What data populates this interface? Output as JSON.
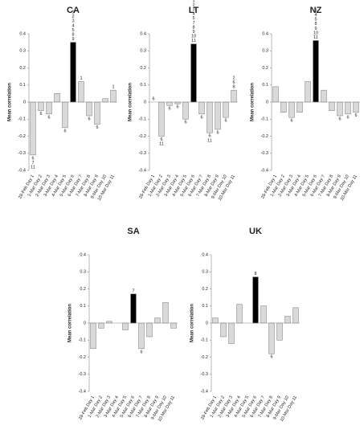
{
  "chart_data": [
    {
      "type": "bar",
      "title": "CA",
      "y_label": "Mean correlation",
      "categories": [
        "28-Feb Day 1",
        "1-Mar Day 2",
        "2-Mar Day 3",
        "3-Mar Day 4",
        "4-Mar Day 5",
        "5-Mar Day 6",
        "6-Mar Day 7",
        "7-Mar Day 8",
        "8-Mar Day 9",
        "9-Mar Day 10",
        "10-Mar Day 11"
      ],
      "values": [
        -0.31,
        -0.05,
        -0.07,
        0.05,
        -0.15,
        0.35,
        0.12,
        -0.08,
        -0.13,
        0.02,
        0.07
      ],
      "colors": [
        "#d9d9d9",
        "#d9d9d9",
        "#d9d9d9",
        "#d9d9d9",
        "#d9d9d9",
        "#000000",
        "#d9d9d9",
        "#d9d9d9",
        "#d9d9d9",
        "#d9d9d9",
        "#d9d9d9"
      ],
      "annotations": [
        [
          "6",
          "7",
          "11"
        ],
        [
          "6"
        ],
        [
          "6"
        ],
        null,
        [
          "6"
        ],
        [
          "1",
          "2",
          "3",
          "4",
          "5",
          "8",
          "9"
        ],
        [
          "1"
        ],
        [
          "6"
        ],
        [
          "6"
        ],
        null,
        [
          "1"
        ]
      ],
      "ylim": [
        -0.4,
        0.4
      ],
      "yticks": [
        -0.4,
        -0.3,
        -0.2,
        -0.1,
        0,
        0.1,
        0.2,
        0.3,
        0.4
      ]
    },
    {
      "type": "bar",
      "title": "LT",
      "y_label": "Mean correlation",
      "categories": [
        "28-Feb Day 1",
        "1-Mar Day 2",
        "2-Mar Day 3",
        "3-Mar Day 4",
        "4-Mar Day 5",
        "5-Mar Day 6",
        "6-Mar Day 7",
        "7-Mar Day 8",
        "8-Mar Day 9",
        "9-Mar Day 10",
        "10-Mar Day 11"
      ],
      "values": [
        0.0,
        -0.2,
        -0.02,
        -0.01,
        -0.1,
        0.34,
        -0.07,
        -0.18,
        -0.16,
        -0.09,
        0.07
      ],
      "colors": [
        "#d9d9d9",
        "#d9d9d9",
        "#d9d9d9",
        "#d9d9d9",
        "#d9d9d9",
        "#000000",
        "#d9d9d9",
        "#d9d9d9",
        "#d9d9d9",
        "#d9d9d9",
        "#d9d9d9"
      ],
      "annotations": [
        [
          "6"
        ],
        [
          "6",
          "11"
        ],
        [
          "6"
        ],
        [
          "6"
        ],
        [
          "6"
        ],
        [
          "1",
          "2",
          "3",
          "4",
          "5",
          "7",
          "8",
          "9",
          "10",
          "11"
        ],
        [
          "6"
        ],
        [
          "6",
          "11"
        ],
        [
          "6"
        ],
        [
          "6"
        ],
        [
          "2",
          "6",
          "8"
        ]
      ],
      "ylim": [
        -0.4,
        0.4
      ],
      "yticks": [
        -0.4,
        -0.3,
        -0.2,
        -0.1,
        0,
        0.1,
        0.2,
        0.3,
        0.4
      ]
    },
    {
      "type": "bar",
      "title": "NZ",
      "y_label": "Mean correlation",
      "categories": [
        "28-Feb Day 1",
        "1-Mar Day 2",
        "2-Mar Day 3",
        "3-Mar Day 4",
        "4-Mar Day 5",
        "5-Mar Day 6",
        "6-Mar Day 7",
        "7-Mar Day 8",
        "8-Mar Day 9",
        "9-Mar Day 10",
        "10-Mar Day 11"
      ],
      "values": [
        0.09,
        -0.06,
        -0.09,
        -0.06,
        0.12,
        0.36,
        0.07,
        -0.05,
        -0.08,
        -0.07,
        -0.06
      ],
      "colors": [
        "#d9d9d9",
        "#d9d9d9",
        "#d9d9d9",
        "#d9d9d9",
        "#d9d9d9",
        "#000000",
        "#d9d9d9",
        "#d9d9d9",
        "#d9d9d9",
        "#d9d9d9",
        "#d9d9d9"
      ],
      "annotations": [
        null,
        null,
        [
          "6"
        ],
        null,
        null,
        [
          "3",
          "4",
          "5",
          "8",
          "9",
          "10",
          "11"
        ],
        null,
        null,
        [
          "6"
        ],
        [
          "6"
        ],
        [
          "6"
        ]
      ],
      "ylim": [
        -0.4,
        0.4
      ],
      "yticks": [
        -0.4,
        -0.3,
        -0.2,
        -0.1,
        0,
        0.1,
        0.2,
        0.3,
        0.4
      ]
    },
    {
      "type": "bar",
      "title": "SA",
      "y_label": "Mean correlation",
      "categories": [
        "28-Feb Day 1",
        "1-Mar Day 2",
        "2-Mar Day 3",
        "3-Mar Day 4",
        "4-Mar Day 5",
        "5-Mar Day 6",
        "6-Mar Day 7",
        "7-Mar Day 8",
        "8-Mar Day 9",
        "9-Mar Day 10",
        "10-Mar Day 11"
      ],
      "values": [
        -0.15,
        -0.03,
        0.01,
        0.0,
        -0.04,
        0.17,
        -0.15,
        -0.08,
        0.03,
        0.12,
        -0.03
      ],
      "colors": [
        "#d9d9d9",
        "#d9d9d9",
        "#d9d9d9",
        "#d9d9d9",
        "#d9d9d9",
        "#000000",
        "#d9d9d9",
        "#d9d9d9",
        "#d9d9d9",
        "#d9d9d9",
        "#d9d9d9"
      ],
      "annotations": [
        null,
        null,
        null,
        null,
        null,
        [
          "7"
        ],
        [
          "6"
        ],
        null,
        null,
        null,
        null
      ],
      "ylim": [
        -0.4,
        0.4
      ],
      "yticks": [
        -0.4,
        -0.3,
        -0.2,
        -0.1,
        0,
        0.1,
        0.2,
        0.3,
        0.4
      ]
    },
    {
      "type": "bar",
      "title": "UK",
      "y_label": "Mean correlation",
      "categories": [
        "28-Feb Day 1",
        "1-Mar Day 2",
        "2-Mar Day 3",
        "3-Mar Day 4",
        "4-Mar Day 5",
        "5-Mar Day 6",
        "6-Mar Day 7",
        "7-Mar Day 8",
        "8-Mar Day 9",
        "9-Mar Day 10",
        "10-Mar Day 11"
      ],
      "values": [
        0.03,
        -0.08,
        -0.12,
        0.11,
        0.0,
        0.27,
        0.1,
        -0.18,
        -0.1,
        0.04,
        0.09
      ],
      "colors": [
        "#d9d9d9",
        "#d9d9d9",
        "#d9d9d9",
        "#d9d9d9",
        "#d9d9d9",
        "#000000",
        "#d9d9d9",
        "#d9d9d9",
        "#d9d9d9",
        "#d9d9d9",
        "#d9d9d9"
      ],
      "annotations": [
        null,
        null,
        null,
        null,
        null,
        [
          "8"
        ],
        null,
        [
          "6"
        ],
        null,
        null,
        null
      ],
      "ylim": [
        -0.4,
        0.4
      ],
      "yticks": [
        -0.4,
        -0.3,
        -0.2,
        -0.1,
        0,
        0.1,
        0.2,
        0.3,
        0.4
      ]
    }
  ]
}
